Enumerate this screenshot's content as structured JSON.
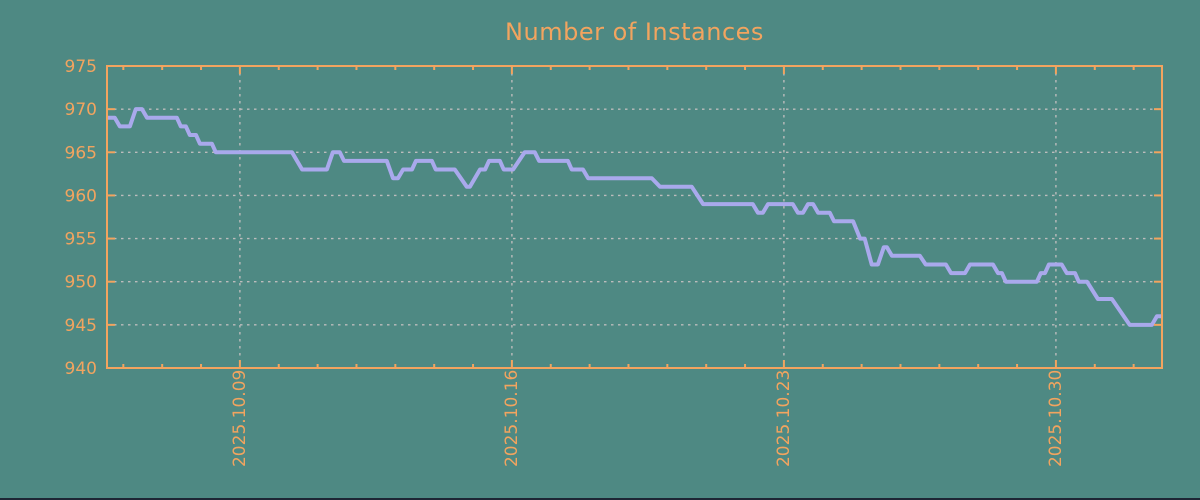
{
  "page": {
    "background": "#4e8983",
    "bottom_edge_color": "#1e2635"
  },
  "chart_data": {
    "type": "line",
    "title": "Number of Instances",
    "title_color": "#f2a45f",
    "axis_color": "#f2a45f",
    "grid_color": "#bcbcbc",
    "grid": true,
    "legend": false,
    "x_axis": {
      "unit": "days relative to 2025.10.09",
      "range": [
        -3.42,
        23.73
      ],
      "major_ticks": [
        {
          "t": 0,
          "label": "2025.10.09"
        },
        {
          "t": 7,
          "label": "2025.10.16"
        },
        {
          "t": 14,
          "label": "2025.10.23"
        },
        {
          "t": 21,
          "label": "2025.10.30"
        }
      ],
      "minor_tick_interval": 1
    },
    "y_axis": {
      "range": [
        940,
        975
      ],
      "ticks": [
        940,
        945,
        950,
        955,
        960,
        965,
        970,
        975
      ]
    },
    "series": [
      {
        "name": "Number of Instances",
        "color": "#a9a9ec",
        "points": [
          [
            -3.42,
            969
          ],
          [
            -3.22,
            969
          ],
          [
            -3.09,
            968
          ],
          [
            -2.83,
            968
          ],
          [
            -2.68,
            970
          ],
          [
            -2.52,
            970
          ],
          [
            -2.39,
            969
          ],
          [
            -1.62,
            969
          ],
          [
            -1.52,
            968
          ],
          [
            -1.39,
            968
          ],
          [
            -1.29,
            967
          ],
          [
            -1.13,
            967
          ],
          [
            -1.03,
            966
          ],
          [
            -0.72,
            966
          ],
          [
            -0.62,
            965
          ],
          [
            1.34,
            965
          ],
          [
            1.6,
            963
          ],
          [
            2.24,
            963
          ],
          [
            2.39,
            965
          ],
          [
            2.57,
            965
          ],
          [
            2.68,
            964
          ],
          [
            3.78,
            964
          ],
          [
            3.94,
            962
          ],
          [
            4.07,
            962
          ],
          [
            4.2,
            963
          ],
          [
            4.43,
            963
          ],
          [
            4.53,
            964
          ],
          [
            4.94,
            964
          ],
          [
            5.04,
            963
          ],
          [
            5.53,
            963
          ],
          [
            5.84,
            961
          ],
          [
            5.92,
            961
          ],
          [
            6.18,
            963
          ],
          [
            6.31,
            963
          ],
          [
            6.41,
            964
          ],
          [
            6.69,
            964
          ],
          [
            6.79,
            963
          ],
          [
            7.03,
            963
          ],
          [
            7.33,
            965
          ],
          [
            7.59,
            965
          ],
          [
            7.7,
            964
          ],
          [
            8.44,
            964
          ],
          [
            8.54,
            963
          ],
          [
            8.83,
            963
          ],
          [
            8.96,
            962
          ],
          [
            10.6,
            962
          ],
          [
            10.81,
            961
          ],
          [
            11.63,
            961
          ],
          [
            11.92,
            959
          ],
          [
            13.2,
            959
          ],
          [
            13.33,
            958
          ],
          [
            13.46,
            958
          ],
          [
            13.59,
            959
          ],
          [
            14.23,
            959
          ],
          [
            14.36,
            958
          ],
          [
            14.49,
            958
          ],
          [
            14.62,
            959
          ],
          [
            14.75,
            959
          ],
          [
            14.88,
            958
          ],
          [
            15.18,
            958
          ],
          [
            15.29,
            957
          ],
          [
            15.78,
            957
          ],
          [
            15.96,
            955
          ],
          [
            16.08,
            955
          ],
          [
            16.26,
            952
          ],
          [
            16.42,
            952
          ],
          [
            16.57,
            954
          ],
          [
            16.65,
            954
          ],
          [
            16.78,
            953
          ],
          [
            17.5,
            953
          ],
          [
            17.65,
            952
          ],
          [
            18.17,
            952
          ],
          [
            18.3,
            951
          ],
          [
            18.66,
            951
          ],
          [
            18.79,
            952
          ],
          [
            19.38,
            952
          ],
          [
            19.51,
            951
          ],
          [
            19.61,
            951
          ],
          [
            19.71,
            950
          ],
          [
            20.51,
            950
          ],
          [
            20.61,
            951
          ],
          [
            20.72,
            951
          ],
          [
            20.82,
            952
          ],
          [
            21.15,
            952
          ],
          [
            21.28,
            951
          ],
          [
            21.49,
            951
          ],
          [
            21.59,
            950
          ],
          [
            21.8,
            950
          ],
          [
            22.08,
            948
          ],
          [
            22.44,
            948
          ],
          [
            22.9,
            945
          ],
          [
            23.47,
            945
          ],
          [
            23.6,
            946
          ],
          [
            23.73,
            946
          ]
        ]
      }
    ]
  }
}
